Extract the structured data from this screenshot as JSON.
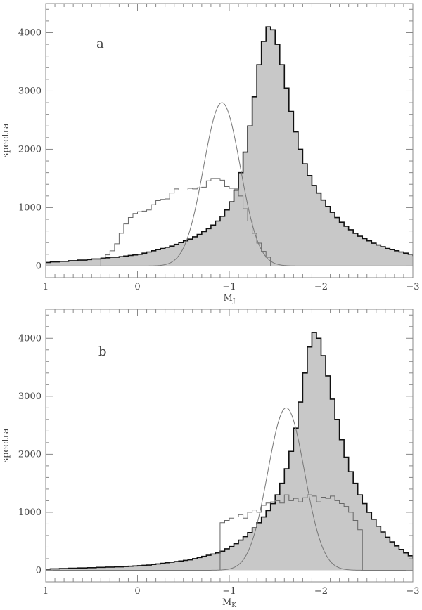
{
  "chart_data": [
    {
      "type": "histogram",
      "panel_label": "a",
      "xlabel": "M",
      "xlabel_sub": "J",
      "ylabel": "spectra",
      "xlim": [
        1,
        -3
      ],
      "ylim": [
        -200,
        4500
      ],
      "x_reversed": true,
      "xticks": [
        1,
        0,
        -1,
        -2,
        -3
      ],
      "xtick_labels": [
        "1",
        "0",
        "−1",
        "−2",
        "−3"
      ],
      "yticks": [
        0,
        1000,
        2000,
        3000,
        4000
      ],
      "ytick_labels": [
        "0",
        "1000",
        "2000",
        "3000",
        "4000"
      ],
      "bin_width": 0.05,
      "series": [
        {
          "kind": "total-histogram-filled",
          "x_start": 1.0,
          "values": [
            60,
            70,
            70,
            80,
            80,
            90,
            90,
            100,
            100,
            110,
            120,
            120,
            130,
            140,
            150,
            150,
            160,
            170,
            180,
            190,
            200,
            220,
            240,
            260,
            280,
            300,
            320,
            340,
            370,
            400,
            430,
            460,
            500,
            540,
            590,
            640,
            700,
            770,
            850,
            960,
            1100,
            1300,
            1600,
            1950,
            2400,
            2900,
            3450,
            3850,
            4100,
            4050,
            3800,
            3450,
            3050,
            2650,
            2300,
            2000,
            1750,
            1550,
            1380,
            1250,
            1130,
            1020,
            920,
            830,
            750,
            680,
            620,
            560,
            510,
            470,
            430,
            390,
            360,
            330,
            300,
            280,
            260,
            240,
            220,
            200,
            180,
            160,
            150,
            130,
            120,
            110,
            100,
            90,
            80,
            70
          ]
        },
        {
          "kind": "sub-histogram",
          "x_start": 0.4,
          "values": [
            140,
            190,
            260,
            380,
            560,
            720,
            830,
            900,
            930,
            940,
            960,
            1050,
            1120,
            1140,
            1150,
            1250,
            1320,
            1300,
            1300,
            1330,
            1320,
            1340,
            1350,
            1460,
            1500,
            1500,
            1470,
            1360,
            1330,
            1320,
            1200,
            980,
            770,
            560,
            390,
            250,
            150
          ]
        },
        {
          "kind": "gaussian-fit",
          "mean": -0.92,
          "sigma": 0.2,
          "amplitude": 2800
        }
      ]
    },
    {
      "type": "histogram",
      "panel_label": "b",
      "xlabel": "M",
      "xlabel_sub": "K",
      "ylabel": "spectra",
      "xlim": [
        1,
        -3
      ],
      "ylim": [
        -200,
        4500
      ],
      "x_reversed": true,
      "xticks": [
        1,
        0,
        -1,
        -2,
        -3
      ],
      "xtick_labels": [
        "1",
        "0",
        "−1",
        "−2",
        "−3"
      ],
      "yticks": [
        0,
        1000,
        2000,
        3000,
        4000
      ],
      "ytick_labels": [
        "0",
        "1000",
        "2000",
        "3000",
        "4000"
      ],
      "bin_width": 0.05,
      "series": [
        {
          "kind": "total-histogram-filled",
          "x_start": 1.0,
          "values": [
            20,
            25,
            25,
            30,
            30,
            35,
            35,
            40,
            40,
            45,
            45,
            50,
            50,
            55,
            55,
            60,
            60,
            65,
            70,
            75,
            80,
            85,
            90,
            100,
            110,
            120,
            130,
            140,
            150,
            160,
            170,
            180,
            200,
            220,
            240,
            260,
            280,
            300,
            330,
            370,
            410,
            460,
            520,
            580,
            650,
            730,
            820,
            920,
            1030,
            1150,
            1300,
            1500,
            1750,
            2050,
            2450,
            2900,
            3400,
            3850,
            4100,
            4000,
            3700,
            3350,
            2950,
            2600,
            2250,
            1950,
            1700,
            1500,
            1300,
            1150,
            1000,
            880,
            760,
            660,
            570,
            490,
            420,
            360,
            300,
            250,
            210,
            180,
            150,
            130
          ]
        },
        {
          "kind": "sub-histogram",
          "x_start": -0.9,
          "values": [
            820,
            860,
            900,
            920,
            960,
            900,
            1000,
            1040,
            1000,
            1120,
            1160,
            1180,
            1200,
            1160,
            1300,
            1200,
            1240,
            1180,
            1250,
            1300,
            1280,
            1180,
            1260,
            1240,
            1280,
            1200,
            1150,
            1100,
            1000,
            860,
            700
          ]
        },
        {
          "kind": "gaussian-fit",
          "mean": -1.62,
          "sigma": 0.2,
          "amplitude": 2800
        }
      ]
    }
  ]
}
